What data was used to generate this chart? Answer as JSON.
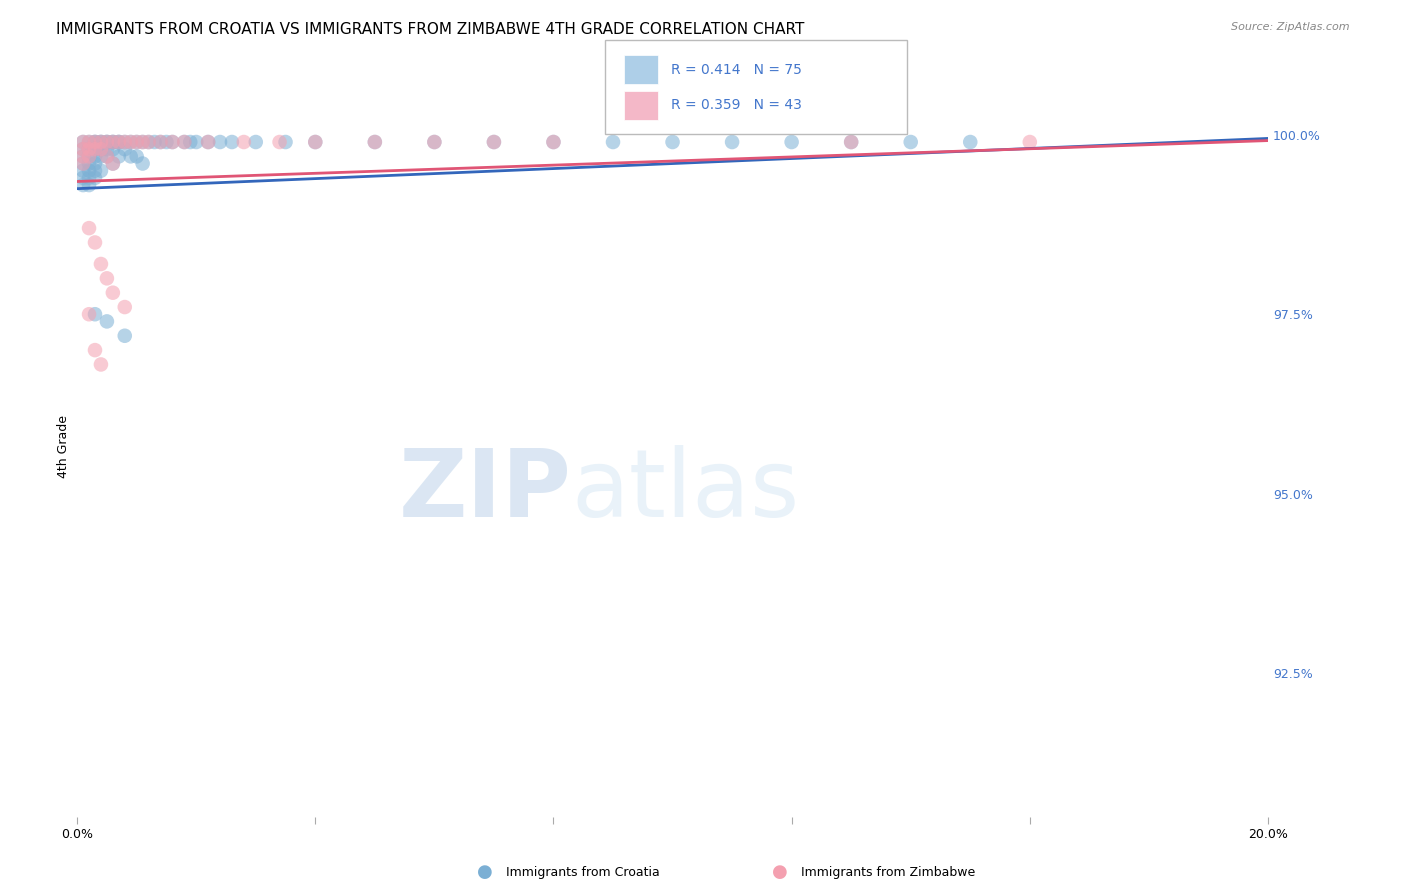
{
  "title": "IMMIGRANTS FROM CROATIA VS IMMIGRANTS FROM ZIMBABWE 4TH GRADE CORRELATION CHART",
  "source": "Source: ZipAtlas.com",
  "ylabel": "4th Grade",
  "ylabel_right_labels": [
    "100.0%",
    "97.5%",
    "95.0%",
    "92.5%"
  ],
  "ylabel_right_values": [
    1.0,
    0.975,
    0.95,
    0.925
  ],
  "xlim": [
    0.0,
    0.2
  ],
  "ylim": [
    0.905,
    1.008
  ],
  "croatia_R": 0.414,
  "croatia_N": 75,
  "zimbabwe_R": 0.359,
  "zimbabwe_N": 43,
  "croatia_color": "#7bafd4",
  "zimbabwe_color": "#f4a0b0",
  "croatia_line_color": "#3366bb",
  "zimbabwe_line_color": "#e05575",
  "legend_box_color": "#aecfe8",
  "legend_box_color2": "#f4b8c8",
  "watermark_zip": "ZIP",
  "watermark_atlas": "atlas",
  "grid_color": "#cccccc",
  "title_fontsize": 11,
  "right_label_color": "#4477cc",
  "croatia_x": [
    0.001,
    0.001,
    0.001,
    0.001,
    0.001,
    0.001,
    0.001,
    0.002,
    0.002,
    0.002,
    0.002,
    0.002,
    0.002,
    0.002,
    0.003,
    0.003,
    0.003,
    0.003,
    0.003,
    0.003,
    0.003,
    0.003,
    0.003,
    0.004,
    0.004,
    0.004,
    0.004,
    0.004,
    0.004,
    0.005,
    0.005,
    0.005,
    0.005,
    0.005,
    0.006,
    0.006,
    0.006,
    0.006,
    0.007,
    0.007,
    0.007,
    0.008,
    0.008,
    0.008,
    0.009,
    0.009,
    0.01,
    0.01,
    0.011,
    0.011,
    0.012,
    0.013,
    0.014,
    0.015,
    0.016,
    0.018,
    0.019,
    0.02,
    0.022,
    0.024,
    0.026,
    0.03,
    0.035,
    0.04,
    0.05,
    0.06,
    0.07,
    0.08,
    0.09,
    0.1,
    0.11,
    0.12,
    0.13,
    0.14,
    0.15
  ],
  "croatia_y": [
    0.999,
    0.998,
    0.997,
    0.996,
    0.995,
    0.994,
    0.993,
    0.999,
    0.998,
    0.997,
    0.996,
    0.995,
    0.994,
    0.993,
    0.999,
    0.999,
    0.998,
    0.998,
    0.997,
    0.996,
    0.995,
    0.994,
    0.975,
    0.999,
    0.999,
    0.998,
    0.998,
    0.997,
    0.995,
    0.999,
    0.999,
    0.998,
    0.997,
    0.974,
    0.999,
    0.999,
    0.998,
    0.996,
    0.999,
    0.999,
    0.997,
    0.999,
    0.998,
    0.972,
    0.999,
    0.997,
    0.999,
    0.997,
    0.999,
    0.996,
    0.999,
    0.999,
    0.999,
    0.999,
    0.999,
    0.999,
    0.999,
    0.999,
    0.999,
    0.999,
    0.999,
    0.999,
    0.999,
    0.999,
    0.999,
    0.999,
    0.999,
    0.999,
    0.999,
    0.999,
    0.999,
    0.999,
    0.999,
    0.999,
    0.999
  ],
  "zimbabwe_x": [
    0.001,
    0.001,
    0.001,
    0.001,
    0.002,
    0.002,
    0.002,
    0.002,
    0.003,
    0.003,
    0.003,
    0.004,
    0.004,
    0.004,
    0.005,
    0.005,
    0.006,
    0.006,
    0.007,
    0.008,
    0.009,
    0.01,
    0.011,
    0.012,
    0.014,
    0.016,
    0.018,
    0.022,
    0.028,
    0.034,
    0.04,
    0.05,
    0.06,
    0.07,
    0.08,
    0.13,
    0.16,
    0.002,
    0.003,
    0.004,
    0.005,
    0.006,
    0.008
  ],
  "zimbabwe_y": [
    0.999,
    0.998,
    0.997,
    0.996,
    0.999,
    0.998,
    0.997,
    0.975,
    0.999,
    0.998,
    0.97,
    0.999,
    0.998,
    0.968,
    0.999,
    0.997,
    0.999,
    0.996,
    0.999,
    0.999,
    0.999,
    0.999,
    0.999,
    0.999,
    0.999,
    0.999,
    0.999,
    0.999,
    0.999,
    0.999,
    0.999,
    0.999,
    0.999,
    0.999,
    0.999,
    0.999,
    0.999,
    0.987,
    0.985,
    0.982,
    0.98,
    0.978,
    0.976
  ]
}
